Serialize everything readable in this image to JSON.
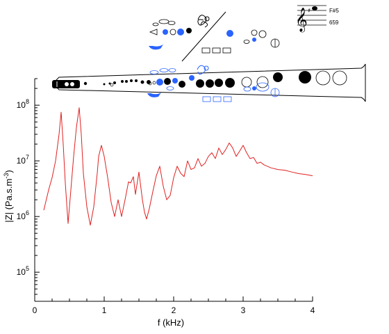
{
  "chart_data": {
    "type": "line",
    "title": "",
    "xlabel": "f (kHz)",
    "ylabel": "|Z| (Pa.s.m",
    "ylabel_exponent": "-3",
    "ylabel_close": ")",
    "x_scale": "linear",
    "y_scale": "log",
    "xlim": [
      0,
      4
    ],
    "ylim": [
      30000,
      300000000
    ],
    "x_ticks": [
      0,
      1,
      2,
      3,
      4
    ],
    "x_tick_labels": [
      "0",
      "1",
      "2",
      "3",
      "4"
    ],
    "y_ticks": [
      100000,
      1000000,
      10000000,
      100000000
    ],
    "y_tick_base": "10",
    "y_tick_exponents": [
      "5",
      "6",
      "7",
      "8"
    ],
    "grid": false,
    "series": [
      {
        "color": "#e02020",
        "x": [
          0.13,
          0.2,
          0.25,
          0.3,
          0.35,
          0.38,
          0.41,
          0.44,
          0.48,
          0.52,
          0.56,
          0.6,
          0.64,
          0.67,
          0.7,
          0.75,
          0.8,
          0.85,
          0.9,
          0.92,
          0.96,
          1.0,
          1.05,
          1.1,
          1.15,
          1.2,
          1.25,
          1.3,
          1.35,
          1.38,
          1.42,
          1.45,
          1.5,
          1.55,
          1.58,
          1.61,
          1.65,
          1.7,
          1.75,
          1.8,
          1.85,
          1.9,
          1.95,
          2.0,
          2.05,
          2.1,
          2.15,
          2.2,
          2.25,
          2.3,
          2.35,
          2.4,
          2.45,
          2.5,
          2.55,
          2.6,
          2.65,
          2.7,
          2.75,
          2.8,
          2.85,
          2.9,
          2.95,
          3.0,
          3.05,
          3.1,
          3.15,
          3.2,
          3.25,
          3.3,
          3.4,
          3.5,
          3.6,
          3.7,
          3.8,
          3.9,
          4.0
        ],
        "y": [
          1300000,
          3000000,
          5000000,
          10000000,
          30000000,
          75000000,
          20000000,
          4000000,
          750000,
          3000000,
          12000000,
          40000000,
          90000000,
          30000000,
          6000000,
          1500000,
          700000,
          1500000,
          6000000,
          12000000,
          19000000,
          12000000,
          5000000,
          1800000,
          1000000,
          2000000,
          1000000,
          2000000,
          4200000,
          4000000,
          5200000,
          2500000,
          6300000,
          2000000,
          1200000,
          900000,
          1400000,
          2800000,
          5400000,
          8000000,
          3500000,
          2000000,
          2400000,
          5000000,
          8000000,
          6000000,
          5200000,
          10000000,
          7000000,
          7500000,
          11000000,
          8000000,
          9000000,
          12000000,
          14000000,
          11000000,
          17000000,
          13000000,
          16000000,
          21000000,
          17000000,
          12000000,
          15000000,
          19000000,
          14000000,
          11000000,
          11500000,
          9000000,
          9500000,
          8500000,
          7500000,
          7000000,
          6800000,
          6300000,
          5900000,
          5700000,
          5400000
        ]
      }
    ]
  },
  "note_panel": {
    "note_name": "F#5",
    "frequency": "659"
  },
  "instrument": {
    "open_hole_color": "#ffffff",
    "closed_hole_color": "#000000",
    "highlight_color": "#2a63ff",
    "outline_color": "#000000"
  }
}
